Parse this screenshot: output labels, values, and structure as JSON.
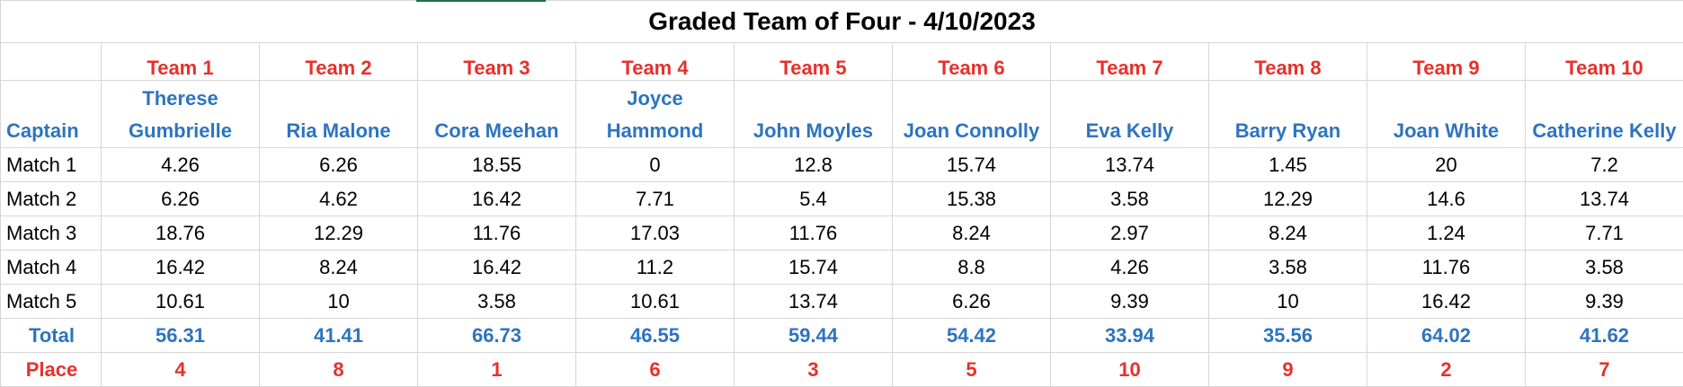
{
  "title": "Graded Team of Four - 4/10/2023",
  "teams": [
    "Team 1",
    "Team 2",
    "Team 3",
    "Team 4",
    "Team 5",
    "Team 6",
    "Team 7",
    "Team 8",
    "Team 9",
    "Team 10"
  ],
  "captain_label": "Captain",
  "captains": [
    "Therese Gumbrielle",
    "Ria Malone",
    "Cora Meehan",
    "Joyce Hammond",
    "John Moyles",
    "Joan Connolly",
    "Eva Kelly",
    "Barry Ryan",
    "Joan White",
    "Catherine Kelly"
  ],
  "matches": [
    {
      "label": "Match 1",
      "scores": [
        4.26,
        6.26,
        18.55,
        0,
        12.8,
        15.74,
        13.74,
        1.45,
        20,
        7.2
      ]
    },
    {
      "label": "Match 2",
      "scores": [
        6.26,
        4.62,
        16.42,
        7.71,
        5.4,
        15.38,
        3.58,
        12.29,
        14.6,
        13.74
      ]
    },
    {
      "label": "Match 3",
      "scores": [
        18.76,
        12.29,
        11.76,
        17.03,
        11.76,
        8.24,
        2.97,
        8.24,
        1.24,
        7.71
      ]
    },
    {
      "label": "Match 4",
      "scores": [
        16.42,
        8.24,
        16.42,
        11.2,
        15.74,
        8.8,
        4.26,
        3.58,
        11.76,
        3.58
      ]
    },
    {
      "label": "Match 5",
      "scores": [
        10.61,
        10,
        3.58,
        10.61,
        13.74,
        6.26,
        9.39,
        10,
        16.42,
        9.39
      ]
    }
  ],
  "total": {
    "label": "Total",
    "values": [
      56.31,
      41.41,
      66.73,
      46.55,
      59.44,
      54.42,
      33.94,
      35.56,
      64.02,
      41.62
    ]
  },
  "place": {
    "label": "Place",
    "values": [
      4,
      8,
      1,
      6,
      3,
      5,
      10,
      9,
      2,
      7
    ]
  }
}
